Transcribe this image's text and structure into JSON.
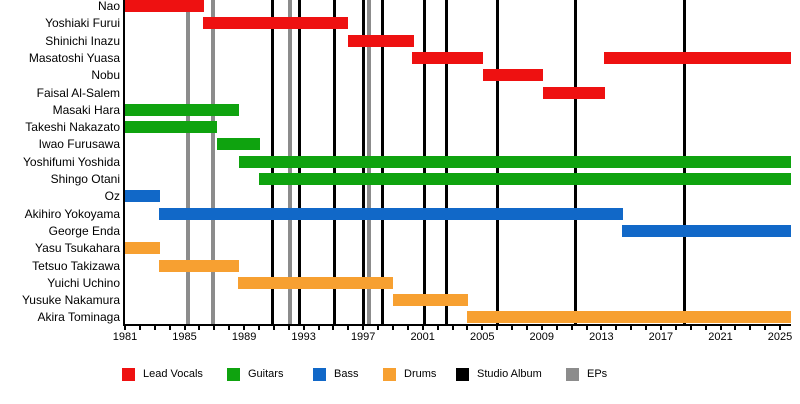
{
  "chart_data": {
    "type": "bar",
    "variant": "horizontal-gantt-band-member-timeline",
    "title": "",
    "xlabel": "",
    "ylabel": "",
    "x_axis": {
      "min": 1981,
      "max": 2025,
      "labeled_ticks": [
        1981,
        1985,
        1989,
        1993,
        1997,
        2001,
        2005,
        2009,
        2013,
        2017,
        2021,
        2025
      ],
      "minor_tick_every": 1,
      "grid": false
    },
    "groups": [
      {
        "name": "Lead Vocals",
        "color": "#EE1111"
      },
      {
        "name": "Guitars",
        "color": "#0FA30F"
      },
      {
        "name": "Bass",
        "color": "#1168C8"
      },
      {
        "name": "Drums",
        "color": "#F7A031"
      }
    ],
    "members": [
      {
        "name": "Nao",
        "group": "Lead Vocals",
        "stints": [
          [
            1981.0,
            1986.3
          ]
        ]
      },
      {
        "name": "Yoshiaki Furui",
        "group": "Lead Vocals",
        "stints": [
          [
            1986.25,
            1996.0
          ]
        ]
      },
      {
        "name": "Shinichi Inazu",
        "group": "Lead Vocals",
        "stints": [
          [
            1996.0,
            2000.4
          ]
        ]
      },
      {
        "name": "Masatoshi Yuasa",
        "group": "Lead Vocals",
        "stints": [
          [
            2000.3,
            2005.05
          ],
          [
            2013.2,
            2025.74
          ]
        ]
      },
      {
        "name": "Nobu",
        "group": "Lead Vocals",
        "stints": [
          [
            2005.05,
            2009.1
          ]
        ]
      },
      {
        "name": "Faisal Al-Salem",
        "group": "Lead Vocals",
        "stints": [
          [
            2009.1,
            2013.25
          ]
        ]
      },
      {
        "name": "Masaki Hara",
        "group": "Guitars",
        "stints": [
          [
            1981.0,
            1988.65
          ]
        ]
      },
      {
        "name": "Takeshi Nakazato",
        "group": "Guitars",
        "stints": [
          [
            1981.0,
            1987.2
          ]
        ]
      },
      {
        "name": "Iwao Furusawa",
        "group": "Guitars",
        "stints": [
          [
            1987.2,
            1990.05
          ]
        ]
      },
      {
        "name": "Yoshifumi Yoshida",
        "group": "Guitars",
        "stints": [
          [
            1988.65,
            2025.74
          ]
        ]
      },
      {
        "name": "Shingo Otani",
        "group": "Guitars",
        "stints": [
          [
            1990.0,
            2025.74
          ]
        ]
      },
      {
        "name": "Oz",
        "group": "Bass",
        "stints": [
          [
            1981.0,
            1983.35
          ]
        ]
      },
      {
        "name": "Akihiro Yokoyama",
        "group": "Bass",
        "stints": [
          [
            1983.3,
            2014.45
          ]
        ]
      },
      {
        "name": "George Enda",
        "group": "Bass",
        "stints": [
          [
            2014.4,
            2025.74
          ]
        ]
      },
      {
        "name": "Yasu Tsukahara",
        "group": "Drums",
        "stints": [
          [
            1981.0,
            1983.35
          ]
        ]
      },
      {
        "name": "Tetsuo Takizawa",
        "group": "Drums",
        "stints": [
          [
            1983.25,
            1988.65
          ]
        ]
      },
      {
        "name": "Yuichi Uchino",
        "group": "Drums",
        "stints": [
          [
            1988.6,
            1999.0
          ]
        ]
      },
      {
        "name": "Yusuke Nakamura",
        "group": "Drums",
        "stints": [
          [
            1999.0,
            2004.05
          ]
        ]
      },
      {
        "name": "Akira Tominaga",
        "group": "Drums",
        "stints": [
          [
            2003.95,
            2025.74
          ]
        ]
      }
    ],
    "events": {
      "studio_albums": {
        "label": "Studio Album",
        "color": "#000000",
        "years": [
          1990.9,
          1992.7,
          1995.1,
          1997.0,
          1998.3,
          2001.1,
          2002.6,
          2006.0,
          2011.25,
          2018.55
        ]
      },
      "eps": {
        "label": "EPs",
        "color": "#8C8C8C",
        "years": [
          1985.2,
          1986.9,
          1992.1,
          1997.4
        ]
      }
    },
    "legend": {
      "position": "bottom",
      "items": [
        {
          "label": "Lead Vocals",
          "color": "#EE1111"
        },
        {
          "label": "Guitars",
          "color": "#0FA30F"
        },
        {
          "label": "Bass",
          "color": "#1168C8"
        },
        {
          "label": "Drums",
          "color": "#F7A031"
        },
        {
          "label": "Studio Album",
          "color": "#000000"
        },
        {
          "label": "EPs",
          "color": "#8C8C8C"
        }
      ]
    }
  }
}
